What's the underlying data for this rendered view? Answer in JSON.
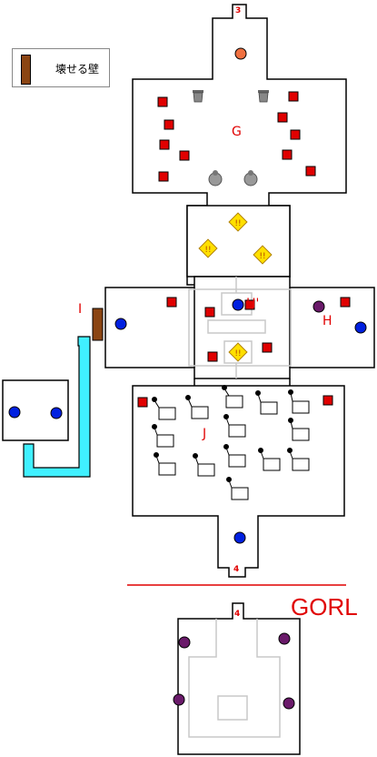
{
  "legend": {
    "breakable_wall_label": "壊せる壁"
  },
  "stairs": {
    "up": "3",
    "down": "4",
    "next": "4"
  },
  "rooms": {
    "G": "G",
    "H": "H",
    "H_prime": "H'",
    "I": "I",
    "J": "J"
  },
  "floor_label": "GORL",
  "colors": {
    "wall": "#000000",
    "label": "#e00000",
    "chest": "#e00000",
    "blue_orb": "#0020e0",
    "purple_orb": "#6a1a6a",
    "orange_orb": "#f07040",
    "breakable_wall": "#8b4513",
    "water_path": "#40f0ff",
    "floor_line": "#c8c8c8",
    "warning_tile": "#ffe000"
  }
}
